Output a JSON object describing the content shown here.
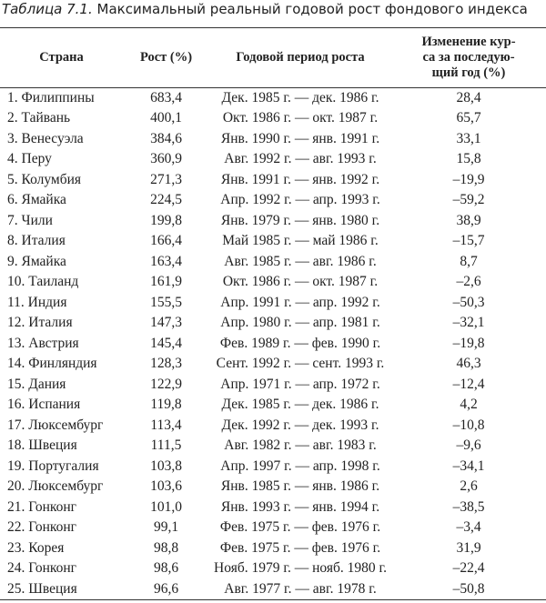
{
  "caption": {
    "label": "Таблица 7.1.",
    "text": "Максимальный реальный годовой рост фондового индекса"
  },
  "table": {
    "headers": [
      [
        "Страна"
      ],
      [
        "Рост (%)"
      ],
      [
        "Годовой период роста"
      ],
      [
        "Изменение кур-",
        "са за последую-",
        "щий год (%)"
      ]
    ],
    "rows": [
      [
        "1. Филиппины",
        "683,4",
        "Дек. 1985 г. — дек. 1986 г.",
        "28,4"
      ],
      [
        "2. Тайвань",
        "400,1",
        "Окт. 1986 г. — окт. 1987 г.",
        "65,7"
      ],
      [
        "3. Венесуэла",
        "384,6",
        "Янв. 1990 г. — янв. 1991 г.",
        "33,1"
      ],
      [
        "4. Перу",
        "360,9",
        "Авг. 1992 г. — авг. 1993 г.",
        "15,8"
      ],
      [
        "5. Колумбия",
        "271,3",
        "Янв. 1991 г. — янв. 1992 г.",
        "–19,9"
      ],
      [
        "6. Ямайка",
        "224,5",
        "Апр. 1992 г. — апр. 1993 г.",
        "–59,2"
      ],
      [
        "7. Чили",
        "199,8",
        "Янв. 1979 г. — янв. 1980 г.",
        "38,9"
      ],
      [
        "8. Италия",
        "166,4",
        "Май 1985 г. — май 1986 г.",
        "–15,7"
      ],
      [
        "9. Ямайка",
        "163,4",
        "Авг. 1985 г. — авг. 1986 г.",
        "8,7"
      ],
      [
        "10. Таиланд",
        "161,9",
        "Окт. 1986 г. — окт. 1987 г.",
        "–2,6"
      ],
      [
        "11. Индия",
        "155,5",
        "Апр. 1991 г. — апр. 1992 г.",
        "–50,3"
      ],
      [
        "12. Италия",
        "147,3",
        "Апр. 1980 г. — апр. 1981 г.",
        "–32,1"
      ],
      [
        "13. Австрия",
        "145,4",
        "Фев. 1989 г. — фев. 1990 г.",
        "–19,8"
      ],
      [
        "14. Финляндия",
        "128,3",
        "Сент. 1992 г. — сент. 1993 г.",
        "46,3"
      ],
      [
        "15. Дания",
        "122,9",
        "Апр. 1971 г. — апр. 1972 г.",
        "–12,4"
      ],
      [
        "16. Испания",
        "119,8",
        "Дек. 1985 г. — дек. 1986 г.",
        "4,2"
      ],
      [
        "17. Люксембург",
        "113,4",
        "Дек. 1992 г. — дек. 1993 г.",
        "–10,8"
      ],
      [
        "18. Швеция",
        "111,5",
        "Авг. 1982 г. — авг. 1983 г.",
        "–9,6"
      ],
      [
        "19. Португалия",
        "103,8",
        "Апр. 1997 г. — апр. 1998 г.",
        "–34,1"
      ],
      [
        "20. Люксембург",
        "103,6",
        "Янв. 1985 г. — янв. 1986 г.",
        "2,6"
      ],
      [
        "21. Гонконг",
        "101,0",
        "Янв. 1993 г. — янв. 1994 г.",
        "–38,5"
      ],
      [
        "22. Гонконг",
        "99,1",
        "Фев. 1975 г. — фев. 1976 г.",
        "–3,4"
      ],
      [
        "23. Корея",
        "98,8",
        "Фев. 1975 г. — фев. 1976 г.",
        "31,9"
      ],
      [
        "24. Гонконг",
        "98,6",
        "Нояб. 1979 г. — нояб. 1980 г.",
        "–22,4"
      ],
      [
        "25. Швеция",
        "96,6",
        "Авг. 1977 г. — авг. 1978 г.",
        "–50,8"
      ]
    ]
  }
}
